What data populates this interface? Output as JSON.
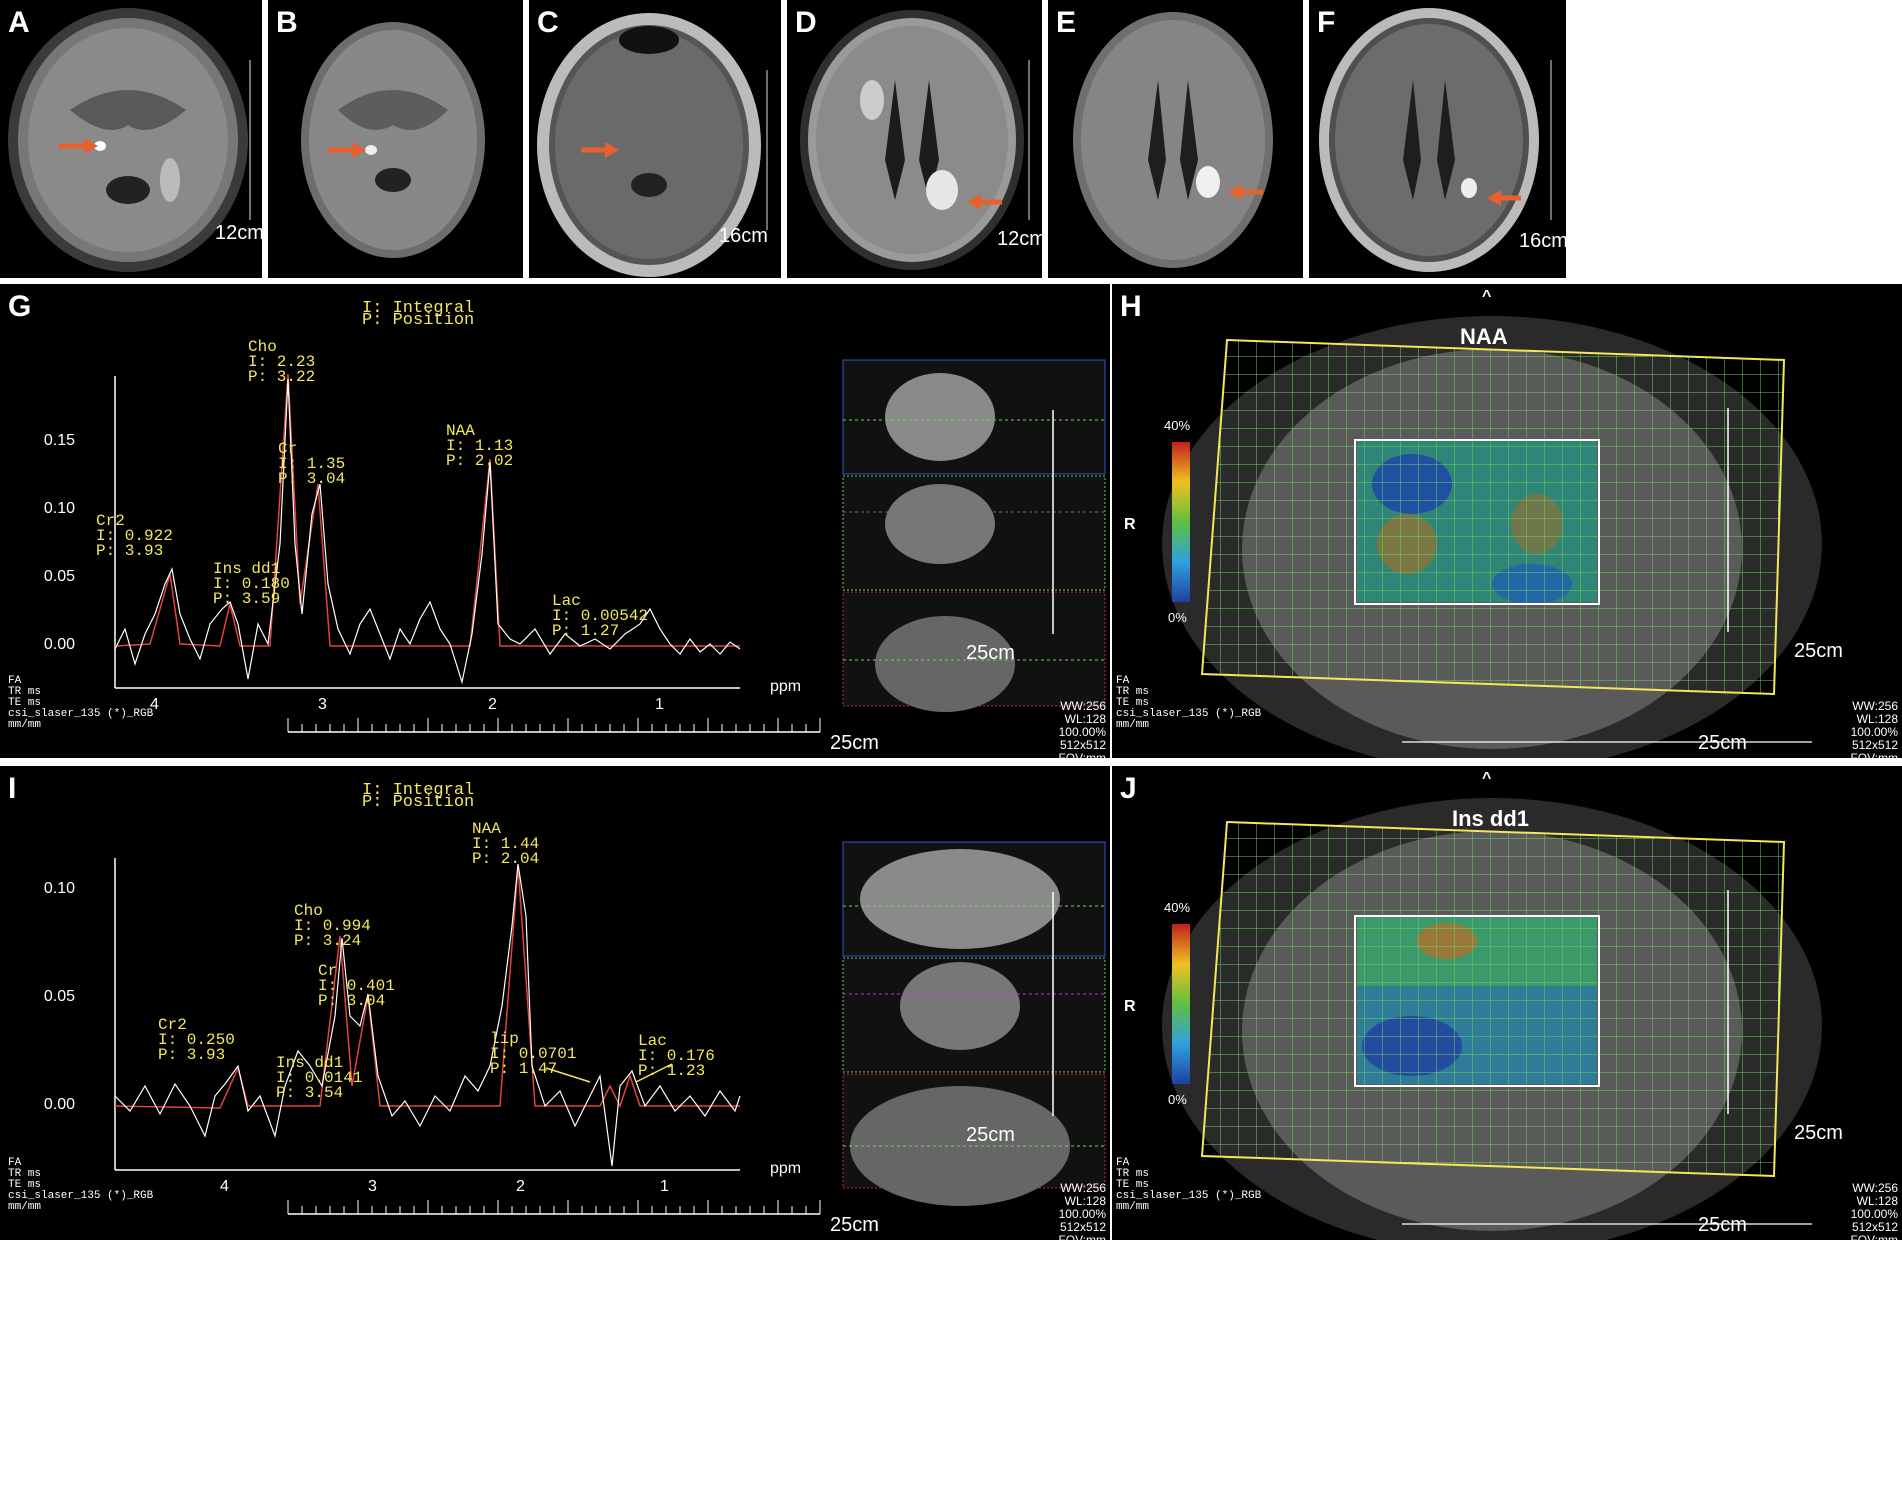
{
  "top_row": {
    "panels": [
      {
        "label": "A",
        "scale": "12cm"
      },
      {
        "label": "B",
        "scale": ""
      },
      {
        "label": "C",
        "scale": "16cm"
      },
      {
        "label": "D",
        "scale": "12cm"
      },
      {
        "label": "E",
        "scale": ""
      },
      {
        "label": "F",
        "scale": "16cm"
      }
    ]
  },
  "spectra": [
    {
      "label": "G",
      "legend_line1": "I: Integral",
      "legend_line2": "P: Position",
      "y_ticks": [
        "0.15",
        "0.10",
        "0.05",
        "0.00"
      ],
      "x_ticks": [
        "4",
        "3",
        "2",
        "1"
      ],
      "x_unit": "ppm",
      "scale": "25cm",
      "inset_scale": "25cm",
      "meta": "FA\nTR ms\nTE ms\ncsi_slaser_135 (*)_RGB\nmm/mm",
      "window": "WW:256\nWL:128\n100.00%\n512x512\nFOV:mm",
      "peaks": [
        {
          "text": "Cho\nI: 2.23\nP: 3.22"
        },
        {
          "text": "Cr\nI: 1.35\nP: 3.04"
        },
        {
          "text": "NAA\nI: 1.13\nP: 2.02"
        },
        {
          "text": "Cr2\nI: 0.922\nP: 3.93"
        },
        {
          "text": "Ins dd1\nI: 0.180\nP: 3.59"
        },
        {
          "text": "Lac\nI: 0.00542\nP: 1.27"
        }
      ]
    },
    {
      "label": "I",
      "legend_line1": "I: Integral",
      "legend_line2": "P: Position",
      "y_ticks": [
        "0.10",
        "0.05",
        "0.00"
      ],
      "x_ticks": [
        "4",
        "3",
        "2",
        "1"
      ],
      "x_unit": "ppm",
      "scale": "25cm",
      "inset_scale": "25cm",
      "meta": "FA\nTR ms\nTE ms\ncsi_slaser_135 (*)_RGB\nmm/mm",
      "window": "WW:256\nWL:128\n100.00%\n512x512\nFOV:mm",
      "peaks": [
        {
          "text": "NAA\nI: 1.44\nP: 2.04"
        },
        {
          "text": "Cho\nI: 0.994\nP: 3.24"
        },
        {
          "text": "Cr\nI: 0.401\nP: 3.04"
        },
        {
          "text": "Cr2\nI: 0.250\nP: 3.93"
        },
        {
          "text": "Ins dd1\nI: 0.0141\nP: 3.54"
        },
        {
          "text": "lip\nI: 0.0701\nP: 1.47"
        },
        {
          "text": "Lac\nI: 0.176\nP: 1.23"
        }
      ]
    }
  ],
  "maps": [
    {
      "label": "H",
      "title": "NAA",
      "caret": "^",
      "side": "R",
      "cbar_top": "40%",
      "cbar_bottom": "0%",
      "scale": "25cm",
      "meta": "FA\nTR ms\nTE ms\ncsi_slaser_135 (*)_RGB\nmm/mm",
      "window": "WW:256\nWL:128\n100.00%\n512x512\nFOV:mm"
    },
    {
      "label": "J",
      "title": "Ins dd1",
      "caret": "^",
      "side": "R",
      "cbar_top": "40%",
      "cbar_bottom": "0%",
      "scale": "25cm",
      "meta": "FA\nTR ms\nTE ms\ncsi_slaser_135 (*)_RGB\nmm/mm",
      "window": "WW:256\nWL:128\n100.00%\n512x512\nFOV:mm"
    }
  ],
  "colors": {
    "arrow": "#e8602c",
    "peak_text": "#f2e85a",
    "fit_line": "#e0443a",
    "grid": "#6bd45a",
    "roi_box": "#f2e85a"
  }
}
